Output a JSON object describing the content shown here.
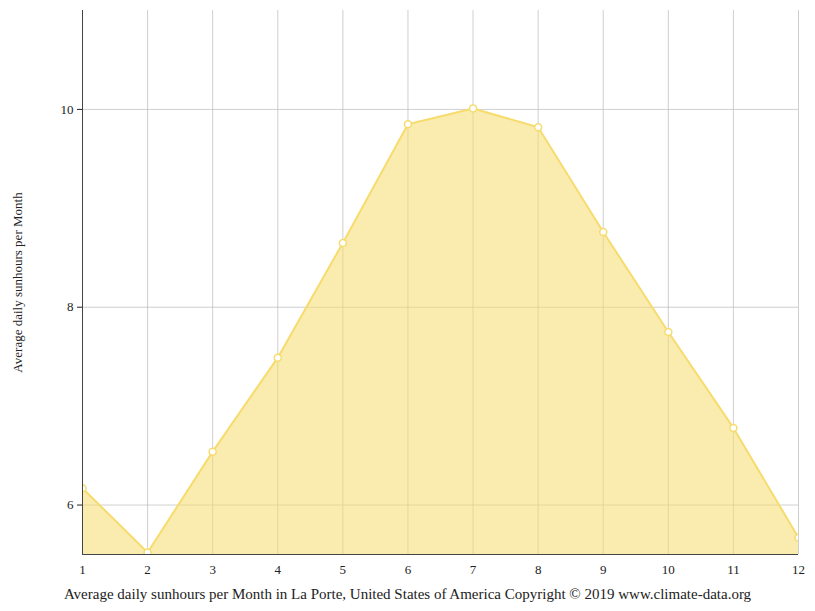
{
  "chart_data": {
    "type": "area",
    "title": "Average daily sunhours per Month in La Porte, United States of America Copyright © 2019 www.climate-data.org",
    "y_label": "Average daily sunhours per Month",
    "x": [
      1,
      2,
      3,
      4,
      5,
      6,
      7,
      8,
      9,
      10,
      11,
      12
    ],
    "values": [
      6.17,
      5.52,
      6.54,
      7.49,
      8.65,
      9.85,
      10.01,
      9.82,
      8.76,
      7.75,
      6.78,
      5.67
    ],
    "color": "#f6dc6e",
    "marker": "circle",
    "xlim": [
      1,
      12
    ],
    "xticks": [
      1,
      2,
      3,
      4,
      5,
      6,
      7,
      8,
      9,
      10,
      11,
      12
    ],
    "ylim": [
      5.5,
      11
    ],
    "yticks": [
      6,
      8,
      10
    ],
    "grid": true
  }
}
